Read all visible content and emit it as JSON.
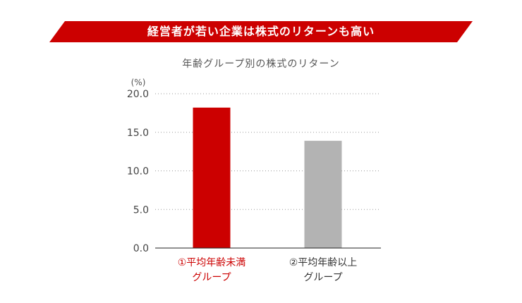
{
  "banner": {
    "title": "経営者が若い企業は株式のリターンも高い",
    "color": "#cc0000"
  },
  "chart_data": {
    "type": "bar",
    "subtitle": "年齢グループ別の株式のリターン",
    "unit": "(%)",
    "categories": [
      "①平均年齢未満\nグループ",
      "②平均年齢以上\nグループ"
    ],
    "values": [
      18.2,
      13.9
    ],
    "colors": [
      "#cc0000",
      "#b3b3b3"
    ],
    "category_label_colors": [
      "#cc0000",
      "#333333"
    ],
    "ylim": [
      0,
      20
    ],
    "yticks": [
      0,
      5,
      10,
      15,
      20
    ],
    "ytick_labels": [
      "0.0",
      "5.0",
      "10.0",
      "15.0",
      "20.0"
    ],
    "grid": true
  }
}
